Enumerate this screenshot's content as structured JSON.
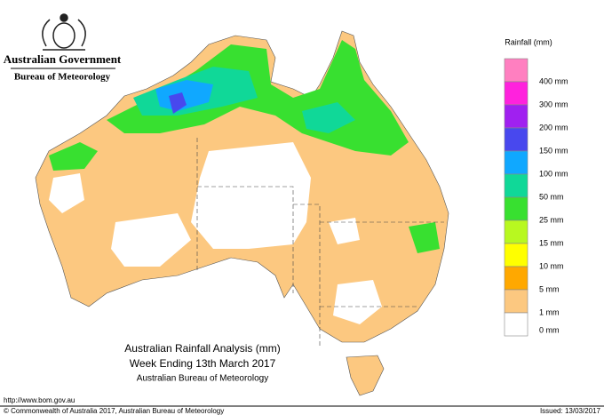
{
  "header": {
    "government": "Australian Government",
    "bureau": "Bureau of Meteorology"
  },
  "legend": {
    "title": "Rainfall (mm)",
    "items": [
      {
        "label": "400 mm",
        "color": "#ff7fc0"
      },
      {
        "label": "300 mm",
        "color": "#ff22dd"
      },
      {
        "label": "200 mm",
        "color": "#a020f0"
      },
      {
        "label": "150 mm",
        "color": "#4848ee"
      },
      {
        "label": "100 mm",
        "color": "#10a8ff"
      },
      {
        "label": "50 mm",
        "color": "#10d898"
      },
      {
        "label": "25 mm",
        "color": "#38e030"
      },
      {
        "label": "15 mm",
        "color": "#b8f820"
      },
      {
        "label": "10 mm",
        "color": "#ffff00"
      },
      {
        "label": "5 mm",
        "color": "#ffa800"
      },
      {
        "label": "1 mm",
        "color": "#fcc880"
      },
      {
        "label": "0 mm",
        "color": "#ffffff"
      }
    ]
  },
  "title": {
    "line1": "Australian Rainfall Analysis (mm)",
    "line2": "Week Ending 13th March 2017",
    "line3": "Australian Bureau of Meteorology"
  },
  "footer": {
    "url": "http://www.bom.gov.au",
    "copyright": "© Commonwealth of Australia 2017, Australian Bureau of Meteorology",
    "issued": "Issued: 13/03/2017"
  }
}
